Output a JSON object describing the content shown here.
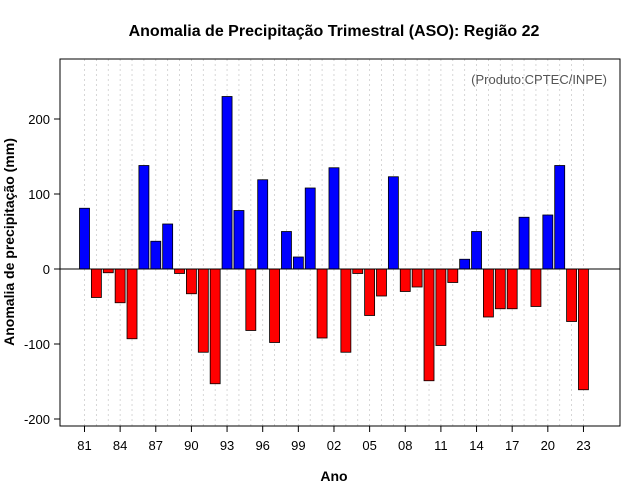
{
  "chart_data": {
    "type": "bar",
    "title": "Anomalia de Precipitação Trimestral (ASO): Região 22",
    "xlabel": "Ano",
    "ylabel": "Anomalia de precipitação (mm)",
    "annotation": "(Produto:CPTEC/INPE)",
    "ylim": [
      -210,
      282
    ],
    "yticks": [
      -200,
      -100,
      0,
      100,
      200
    ],
    "x_tick_labels": [
      "81",
      "84",
      "87",
      "90",
      "93",
      "96",
      "99",
      "02",
      "05",
      "08",
      "11",
      "14",
      "17",
      "20",
      "23"
    ],
    "years": [
      1981,
      1982,
      1983,
      1984,
      1985,
      1986,
      1987,
      1988,
      1989,
      1990,
      1991,
      1992,
      1993,
      1994,
      1995,
      1996,
      1997,
      1998,
      1999,
      2000,
      2001,
      2002,
      2003,
      2004,
      2005,
      2006,
      2007,
      2008,
      2009,
      2010,
      2011,
      2012,
      2013,
      2014,
      2015,
      2016,
      2017,
      2018,
      2019,
      2020,
      2021,
      2022,
      2023
    ],
    "values": [
      81,
      -38,
      -5,
      -45,
      -93,
      138,
      37,
      60,
      -6,
      -33,
      -111,
      -153,
      230,
      78,
      -82,
      119,
      -98,
      50,
      16,
      108,
      -92,
      135,
      -111,
      -6,
      -62,
      -36,
      123,
      -30,
      -24,
      -149,
      -102,
      -18,
      13,
      50,
      -64,
      -53,
      -53,
      69,
      -50,
      72,
      138,
      -70,
      -161
    ],
    "colors": {
      "positive": "#0000FF",
      "negative": "#FF0000"
    },
    "grid": true
  }
}
